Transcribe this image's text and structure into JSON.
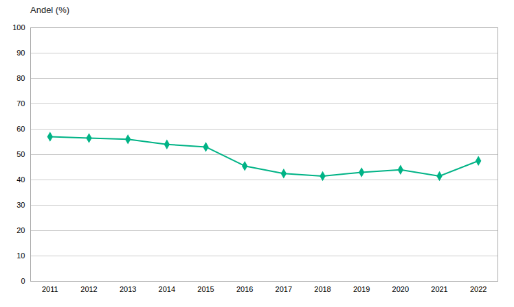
{
  "chart_data": {
    "type": "line",
    "ylabel": "Andel (%)",
    "x": [
      2011,
      2012,
      2013,
      2014,
      2015,
      2016,
      2017,
      2018,
      2019,
      2020,
      2021,
      2022
    ],
    "values": [
      57,
      56.5,
      56,
      54,
      53,
      45.5,
      42.5,
      41.5,
      43,
      44,
      41.5,
      47.5
    ],
    "color": "#00b386",
    "marker": "diamond",
    "xlim": [
      2010.5,
      2022.5
    ],
    "xticks": [
      2011,
      2012,
      2013,
      2014,
      2015,
      2016,
      2017,
      2018,
      2019,
      2020,
      2021,
      2022
    ],
    "ylim": [
      0,
      100
    ],
    "yticks": [
      0,
      10,
      20,
      30,
      40,
      50,
      60,
      70,
      80,
      90,
      100
    ],
    "grid": true
  }
}
